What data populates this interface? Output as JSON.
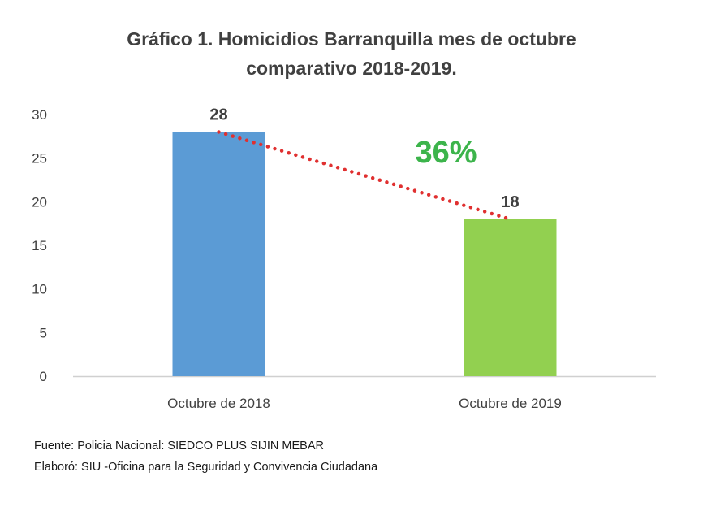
{
  "chart_data": {
    "type": "bar",
    "title_lines": [
      "Gráfico 1. Homicidios Barranquilla mes de octubre",
      "comparativo 2018-2019."
    ],
    "categories": [
      "Octubre de 2018",
      "Octubre de 2019"
    ],
    "values": [
      28,
      18
    ],
    "data_labels": [
      "28",
      "18"
    ],
    "bar_colors": [
      "#5b9bd5",
      "#92d050"
    ],
    "trendline_color": "#e03030",
    "annotation": "36%",
    "annotation_color": "#3cb44b",
    "ylim": [
      0,
      30
    ],
    "yticks": [
      0,
      5,
      10,
      15,
      20,
      25,
      30
    ],
    "grid": false,
    "legend": "none"
  },
  "footer": {
    "source": "Fuente: Policia Nacional: SIEDCO PLUS SIJIN MEBAR",
    "elaborated": "Elaboró:  SIU -Oficina para la Seguridad y Convivencia Ciudadana"
  }
}
